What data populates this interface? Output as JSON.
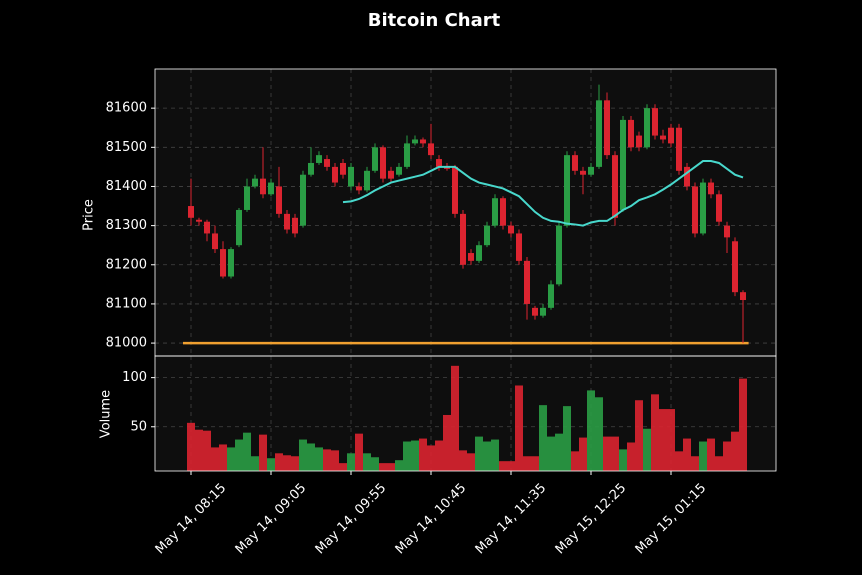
{
  "chart_data": {
    "type": "candlestick",
    "title": "Bitcoin Chart",
    "ylabel": "Price",
    "volume_ylabel": "Volume",
    "x": [
      "May 14, 08:15",
      "May 14, 08:20",
      "May 14, 08:25",
      "May 14, 08:30",
      "May 14, 08:35",
      "May 14, 08:40",
      "May 14, 08:45",
      "May 14, 08:50",
      "May 14, 08:55",
      "May 14, 09:00",
      "May 14, 09:05",
      "May 14, 09:10",
      "May 14, 09:15",
      "May 14, 09:20",
      "May 14, 09:25",
      "May 14, 09:30",
      "May 14, 09:35",
      "May 14, 09:40",
      "May 14, 09:45",
      "May 14, 09:50",
      "May 14, 09:55",
      "May 14, 10:00",
      "May 14, 10:05",
      "May 14, 10:10",
      "May 14, 10:15",
      "May 14, 10:20",
      "May 14, 10:25",
      "May 14, 10:30",
      "May 14, 10:35",
      "May 14, 10:40",
      "May 14, 10:45",
      "May 14, 10:50",
      "May 14, 10:55",
      "May 14, 11:00",
      "May 14, 11:05",
      "May 14, 11:10",
      "May 14, 11:15",
      "May 14, 11:20",
      "May 14, 11:25",
      "May 14, 11:30",
      "May 14, 11:35",
      "May 14, 11:40",
      "May 14, 11:45",
      "May 14, 11:50",
      "May 14, 11:55",
      "May 15, 12:00",
      "May 15, 12:05",
      "May 15, 12:10",
      "May 15, 12:15",
      "May 15, 12:20",
      "May 15, 12:25",
      "May 15, 12:30",
      "May 15, 12:35",
      "May 15, 12:40",
      "May 15, 12:45",
      "May 15, 12:50",
      "May 15, 12:55",
      "May 15, 01:00",
      "May 15, 01:05",
      "May 15, 01:10",
      "May 15, 01:15",
      "May 15, 01:20",
      "May 15, 01:25",
      "May 15, 01:30",
      "May 15, 01:35",
      "May 15, 01:40",
      "May 15, 01:45",
      "May 15, 01:50",
      "May 15, 01:55",
      "May 15, 02:00"
    ],
    "open": [
      81350,
      81315,
      81310,
      81280,
      81240,
      81170,
      81250,
      81340,
      81400,
      81420,
      81380,
      81400,
      81330,
      81320,
      81300,
      81430,
      81460,
      81470,
      81450,
      81460,
      81400,
      81400,
      81390,
      81440,
      81500,
      81440,
      81430,
      81450,
      81510,
      81520,
      81510,
      81470,
      81450,
      81450,
      81330,
      81230,
      81210,
      81250,
      81300,
      81370,
      81300,
      81280,
      81210,
      81090,
      81070,
      81090,
      81150,
      81300,
      81480,
      81440,
      81430,
      81450,
      81620,
      81480,
      81340,
      81570,
      81530,
      81500,
      81600,
      81530,
      81550,
      81550,
      81450,
      81400,
      81280,
      81410,
      81380,
      81300,
      81260,
      81130
    ],
    "high": [
      81420,
      81320,
      81315,
      81300,
      81260,
      81245,
      81345,
      81420,
      81430,
      81500,
      81420,
      81450,
      81340,
      81330,
      81440,
      81500,
      81490,
      81480,
      81460,
      81470,
      81460,
      81410,
      81450,
      81510,
      81505,
      81450,
      81460,
      81530,
      81530,
      81525,
      81560,
      81480,
      81460,
      81455,
      81340,
      81240,
      81260,
      81310,
      81380,
      81375,
      81310,
      81290,
      81220,
      81095,
      81100,
      81160,
      81310,
      81490,
      81490,
      81450,
      81460,
      81660,
      81640,
      81490,
      81580,
      81580,
      81540,
      81610,
      81610,
      81545,
      81560,
      81560,
      81460,
      81410,
      81420,
      81420,
      81390,
      81310,
      81270,
      81135
    ],
    "low": [
      81300,
      81300,
      81260,
      81230,
      81165,
      81165,
      81245,
      81335,
      81395,
      81370,
      81375,
      81320,
      81280,
      81270,
      81295,
      81425,
      81455,
      81440,
      81400,
      81420,
      81390,
      81380,
      81385,
      81435,
      81410,
      81410,
      81425,
      81445,
      81505,
      81500,
      81470,
      81440,
      81440,
      81320,
      81190,
      81200,
      81205,
      81245,
      81295,
      81290,
      81270,
      81200,
      81060,
      81060,
      81065,
      81085,
      81145,
      81295,
      81430,
      81380,
      81425,
      81445,
      81470,
      81300,
      81335,
      81490,
      81490,
      81495,
      81520,
      81510,
      81500,
      81430,
      81390,
      81270,
      81275,
      81370,
      81300,
      81230,
      81120,
      81000
    ],
    "close": [
      81320,
      81310,
      81280,
      81240,
      81170,
      81240,
      81340,
      81400,
      81420,
      81380,
      81410,
      81330,
      81290,
      81280,
      81430,
      81460,
      81480,
      81450,
      81410,
      81430,
      81450,
      81390,
      81440,
      81500,
      81420,
      81420,
      81450,
      81510,
      81520,
      81510,
      81480,
      81450,
      81445,
      81330,
      81200,
      81210,
      81250,
      81300,
      81370,
      81300,
      81280,
      81210,
      81100,
      81070,
      81090,
      81150,
      81300,
      81480,
      81440,
      81430,
      81450,
      81620,
      81480,
      81320,
      81570,
      81500,
      81500,
      81600,
      81530,
      81520,
      81510,
      81440,
      81400,
      81280,
      81410,
      81380,
      81310,
      81270,
      81130,
      81110
    ],
    "volume": [
      54,
      47,
      46,
      29,
      32,
      29,
      37,
      44,
      20,
      42,
      18,
      23,
      21,
      20,
      37,
      33,
      29,
      27,
      26,
      13,
      23,
      43,
      23,
      19,
      13,
      13,
      16,
      35,
      36,
      38,
      31,
      36,
      62,
      112,
      26,
      23,
      40,
      35,
      37,
      15,
      15,
      92,
      20,
      20,
      72,
      40,
      43,
      71,
      25,
      39,
      87,
      80,
      40,
      40,
      27,
      34,
      77,
      48,
      83,
      68,
      68,
      25,
      38,
      20,
      35,
      38,
      20,
      35,
      45,
      99
    ],
    "moving_average": {
      "color": "#48d8cc",
      "values": [
        null,
        null,
        null,
        null,
        null,
        null,
        null,
        null,
        null,
        null,
        null,
        null,
        null,
        null,
        null,
        null,
        null,
        null,
        null,
        81360,
        81362,
        81368,
        81378,
        81390,
        81400,
        81410,
        81415,
        81420,
        81425,
        81430,
        81440,
        81450,
        81450,
        81450,
        81435,
        81420,
        81410,
        81405,
        81400,
        81395,
        81385,
        81375,
        81355,
        81335,
        81320,
        81312,
        81310,
        81305,
        81303,
        81300,
        81308,
        81312,
        81312,
        81325,
        81340,
        81350,
        81365,
        81372,
        81380,
        81392,
        81405,
        81420,
        81435,
        81450,
        81465,
        81465,
        81460,
        81445,
        81430,
        81423
      ]
    },
    "hline": {
      "value": 81000,
      "color": "#f0a030"
    },
    "up_color": "#2a9d45",
    "down_color": "#dc2430",
    "ylim": [
      80967,
      81700
    ],
    "yticks": [
      81000,
      81100,
      81200,
      81300,
      81400,
      81500,
      81600
    ],
    "volume_ylim": [
      5,
      122
    ],
    "volume_yticks": [
      50,
      100
    ],
    "xticks": [
      "May 14, 08:15",
      "May 14, 09:05",
      "May 14, 09:55",
      "May 14, 10:45",
      "May 14, 11:35",
      "May 15, 12:25",
      "May 15, 01:15"
    ],
    "grid": true
  }
}
